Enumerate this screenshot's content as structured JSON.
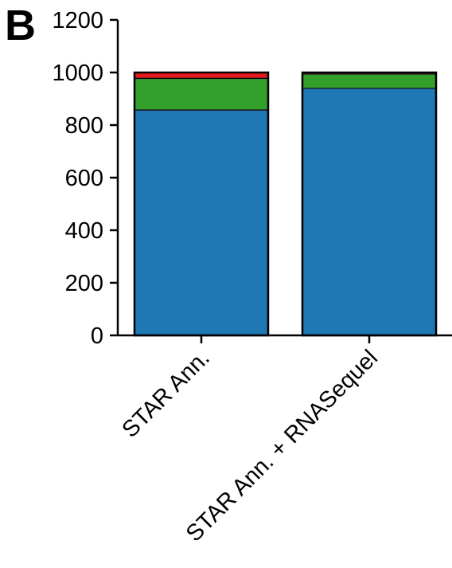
{
  "panel_label": "B",
  "chart_data": {
    "type": "bar",
    "stacked": true,
    "categories": [
      "STAR Ann.",
      "STAR Ann. + RNASequel"
    ],
    "series": [
      {
        "color": "#1f77b4",
        "values": [
          855,
          938
        ]
      },
      {
        "color": "#000000",
        "values": [
          5,
          4
        ]
      },
      {
        "color": "#33a02c",
        "values": [
          115,
          50
        ]
      },
      {
        "color": "#000000",
        "values": [
          5,
          4
        ]
      },
      {
        "color": "#e31a1c",
        "values": [
          20,
          4
        ]
      }
    ],
    "y_ticks": [
      "0",
      "200",
      "400",
      "600",
      "800",
      "1000",
      "1200"
    ],
    "ylim": [
      0,
      1200
    ],
    "title": "",
    "xlabel": "",
    "ylabel": "",
    "grid": false,
    "legend": "none"
  }
}
